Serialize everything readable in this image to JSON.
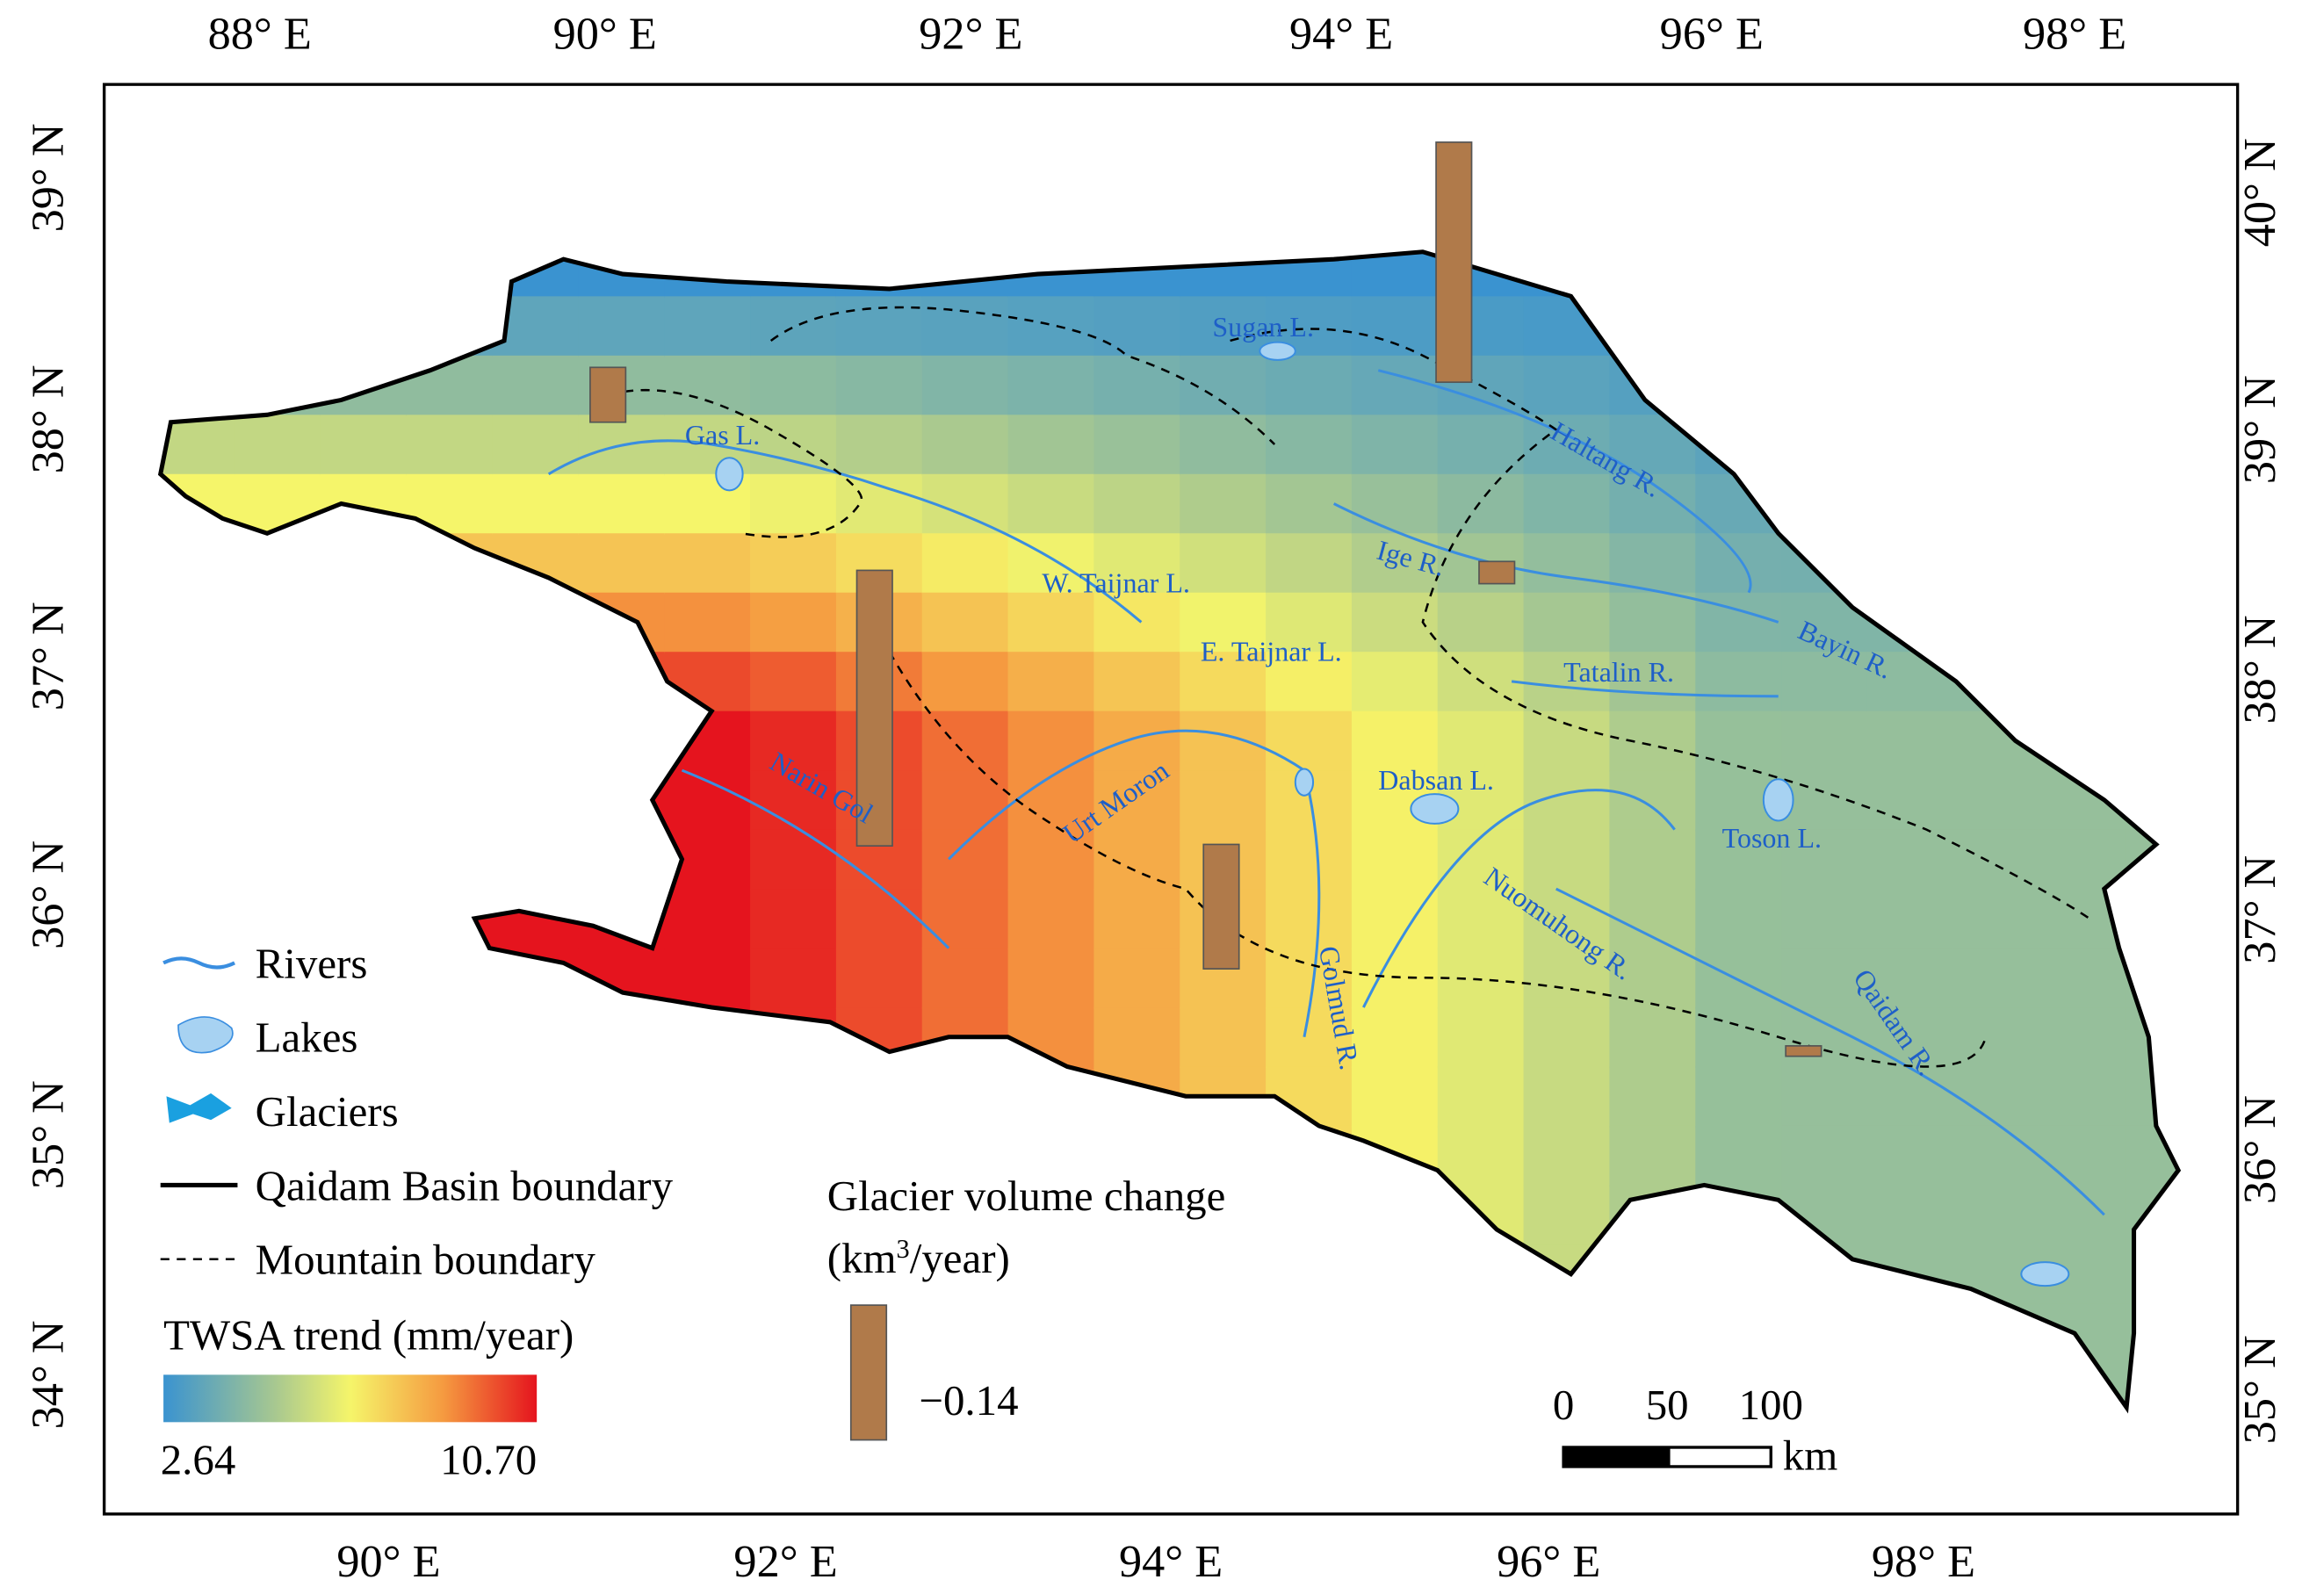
{
  "axes": {
    "top": [
      "88° E",
      "90° E",
      "92° E",
      "94° E",
      "96° E",
      "98° E"
    ],
    "bottom": [
      "90° E",
      "92° E",
      "94° E",
      "96° E",
      "98° E"
    ],
    "left": [
      "39° N",
      "38° N",
      "37° N",
      "36° N",
      "35° N",
      "34° N"
    ],
    "right": [
      "40° N",
      "39° N",
      "38° N",
      "37° N",
      "36° N",
      "35° N"
    ]
  },
  "places": [
    "Sugan L.",
    "Gas L.",
    "Haltang R.",
    "Ige R.",
    "W. Taijnar L.",
    "E. Taijnar L.",
    "Tatalin R.",
    "Bayin R.",
    "Dabsan L.",
    "Narin Gol",
    "Urt Moron",
    "Toson L.",
    "Golmud R.",
    "Nuomuhong R.",
    "Qaidam R."
  ],
  "legend": {
    "rivers": "Rivers",
    "lakes": "Lakes",
    "glaciers": "Glaciers",
    "basin": "Qaidam Basin boundary",
    "mountain": "Mountain boundary"
  },
  "colorbar": {
    "title": "TWSA trend (mm/year)",
    "min": "2.64",
    "max": "10.70"
  },
  "glacier_legend": {
    "title": "Glacier volume change",
    "unit_open": "(km",
    "unit_sup": "3",
    "unit_close": "/year)",
    "value": "−0.14"
  },
  "scale_bar": {
    "labels": [
      "0",
      "50",
      "100"
    ],
    "unit": "km"
  }
}
